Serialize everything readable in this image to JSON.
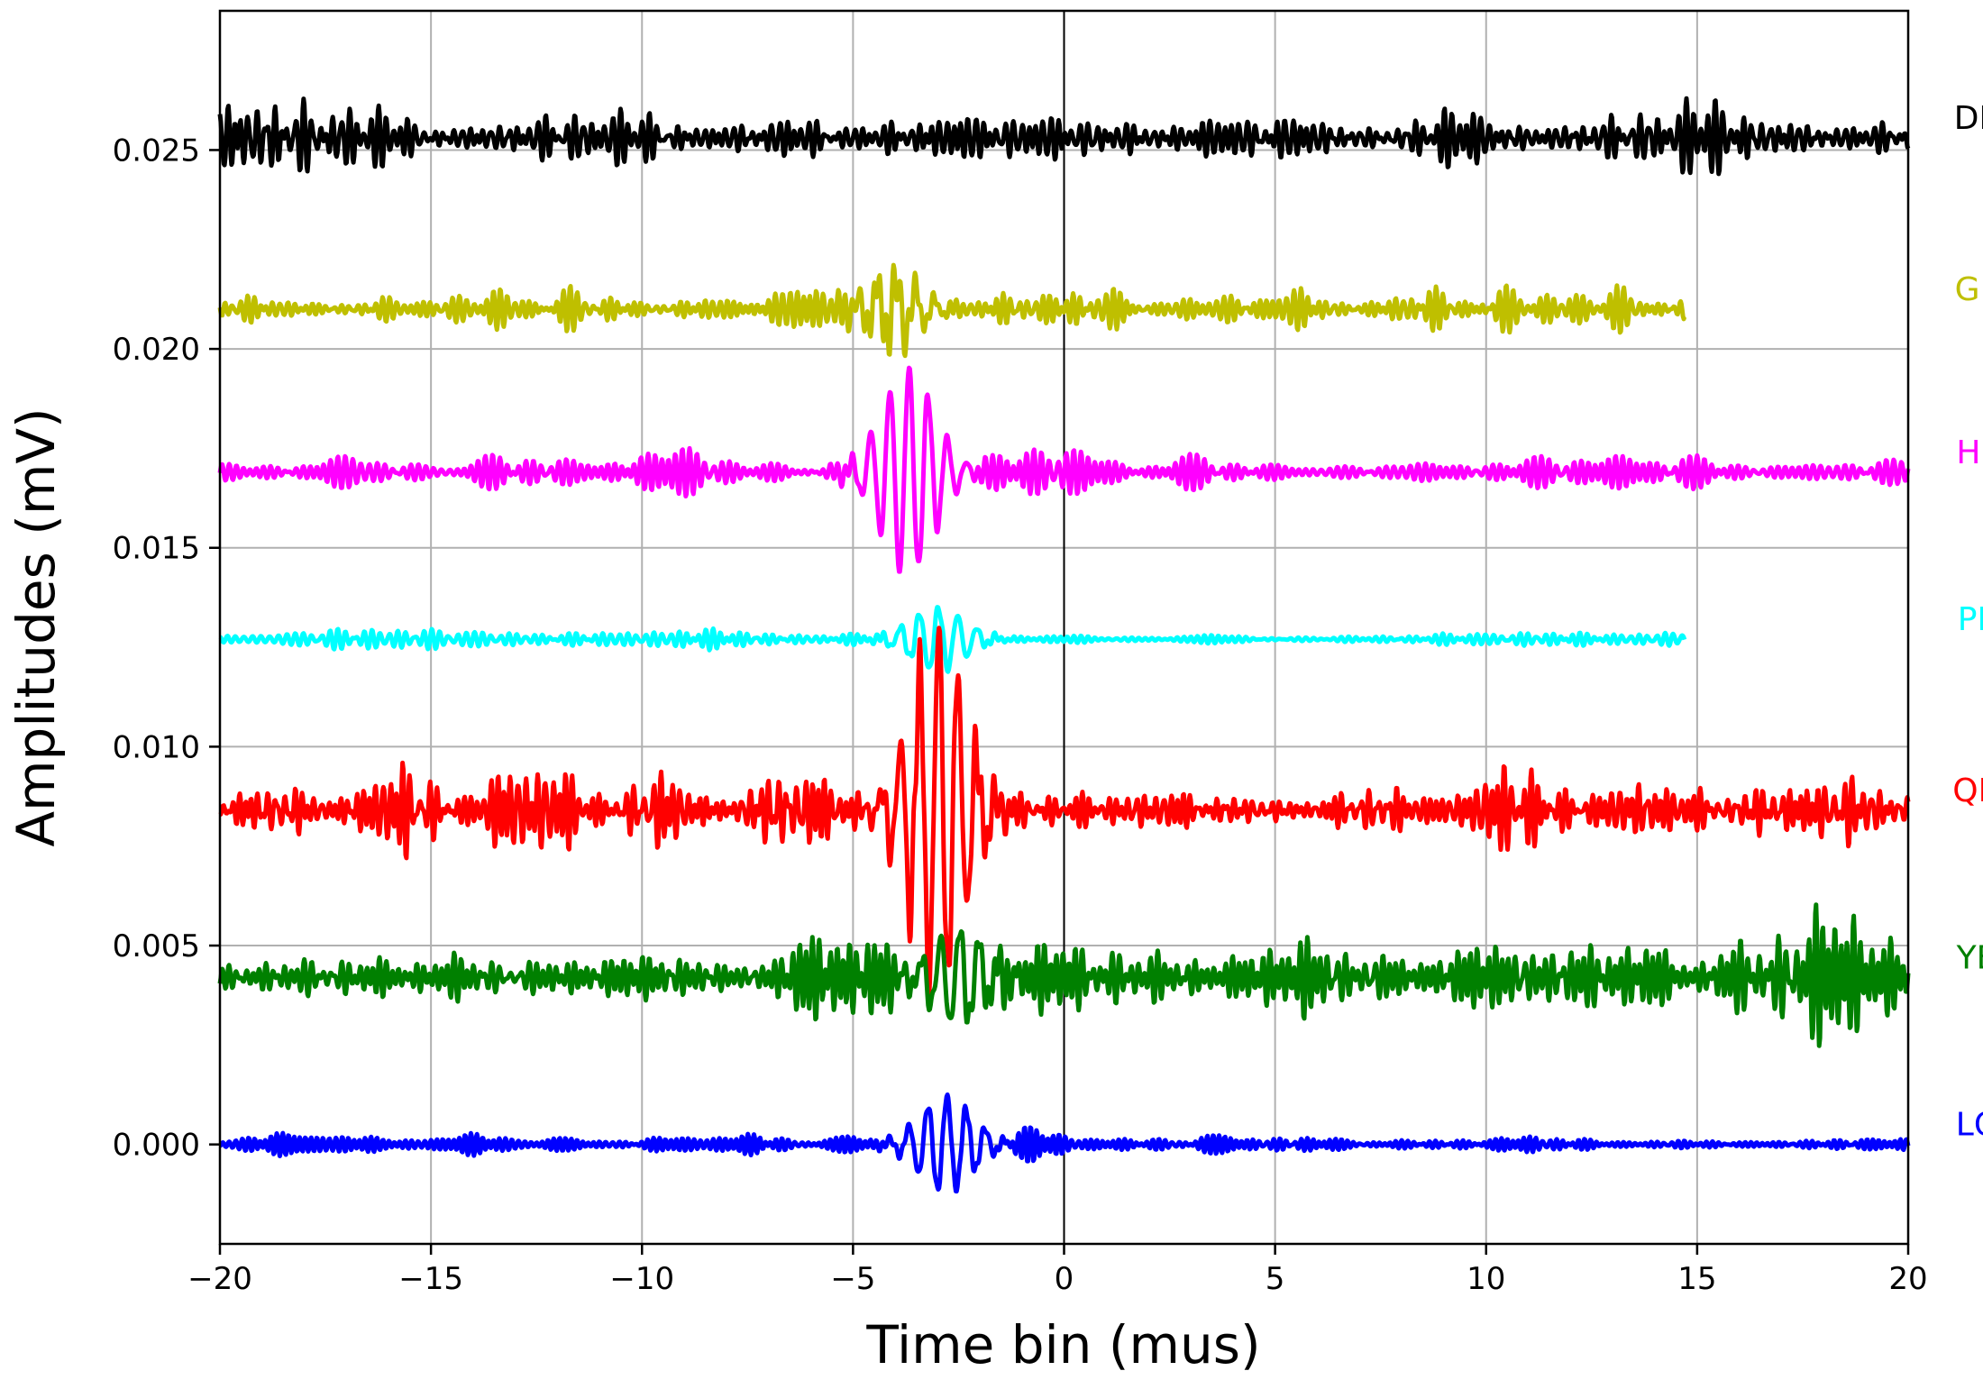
{
  "chart_data": {
    "type": "line",
    "title": "",
    "xlabel": "Time bin (mus)",
    "ylabel": "Amplitudes (mV)",
    "xlim": [
      -20,
      20
    ],
    "ylim": [
      -0.0025,
      0.0285
    ],
    "xticks": [
      -20,
      -15,
      -10,
      -5,
      0,
      5,
      10,
      15,
      20
    ],
    "xtick_labels": [
      "−20",
      "−15",
      "−10",
      "−5",
      "0",
      "5",
      "10",
      "15",
      "20"
    ],
    "yticks": [
      0.0,
      0.005,
      0.01,
      0.015,
      0.02,
      0.025
    ],
    "ytick_labels": [
      "0.000",
      "0.005",
      "0.010",
      "0.015",
      "0.020",
      "0.025"
    ],
    "grid": true,
    "zero_line_x": 0,
    "legend": "inline labels at right edge",
    "series": [
      {
        "name": "DB",
        "color": "#000000",
        "baseline": 0.0253,
        "x_range": [
          -20,
          20
        ],
        "noise_amp": 0.00075,
        "burst_center": null,
        "burst_amp": 0
      },
      {
        "name": "GE",
        "color": "#bfbf00",
        "baseline": 0.021,
        "x_range": [
          -20,
          14.7
        ],
        "noise_amp": 0.0005,
        "burst_center": -4.0,
        "burst_amp": 0.0008
      },
      {
        "name": "HL",
        "color": "#ff00ff",
        "baseline": 0.0169,
        "x_range": [
          -20,
          20
        ],
        "noise_amp": 0.0005,
        "burst_center": -3.7,
        "burst_amp": 0.0026
      },
      {
        "name": "PE",
        "color": "#00ffff",
        "baseline": 0.0127,
        "x_range": [
          -20,
          14.7
        ],
        "noise_amp": 0.00025,
        "burst_center": -3.0,
        "burst_amp": 0.0008
      },
      {
        "name": "QH",
        "color": "#ff0000",
        "baseline": 0.0084,
        "x_range": [
          -20,
          20
        ],
        "noise_amp": 0.0008,
        "burst_center": -3.0,
        "burst_amp": 0.0045
      },
      {
        "name": "YB",
        "color": "#008000",
        "baseline": 0.0042,
        "x_range": [
          -20,
          20
        ],
        "noise_amp": 0.0007,
        "burst_center": -2.5,
        "burst_amp": 0.0012
      },
      {
        "name": "LQ",
        "color": "#0000ff",
        "baseline": 0.0,
        "x_range": [
          -20,
          20
        ],
        "noise_amp": 0.00025,
        "burst_center": -2.8,
        "burst_amp": 0.0012
      }
    ]
  }
}
